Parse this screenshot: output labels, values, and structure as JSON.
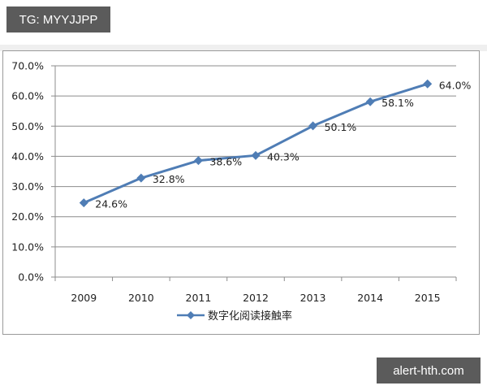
{
  "watermarks": {
    "top_left": "TG: MYYJJPP",
    "bottom_right": "alert-hth.com"
  },
  "colors": {
    "series": "#4f7db5",
    "grid": "#8c8c8c",
    "badge_bg": "#5b5b5b"
  },
  "chart_data": {
    "type": "line",
    "title": "",
    "xlabel": "",
    "ylabel": "",
    "categories": [
      "2009",
      "2010",
      "2011",
      "2012",
      "2013",
      "2014",
      "2015"
    ],
    "series": [
      {
        "name": "数字化阅读接触率",
        "values": [
          24.6,
          32.8,
          38.6,
          40.3,
          50.1,
          58.1,
          64.0
        ],
        "labels": [
          "24.6%",
          "32.8%",
          "38.6%",
          "40.3%",
          "50.1%",
          "58.1%",
          "64.0%"
        ],
        "marker": "diamond"
      }
    ],
    "yticks": [
      "0.0%",
      "10.0%",
      "20.0%",
      "30.0%",
      "40.0%",
      "50.0%",
      "60.0%",
      "70.0%"
    ],
    "ylim": [
      0,
      70
    ],
    "grid": true,
    "legend_position": "bottom"
  },
  "legend": {
    "label": "数字化阅读接触率"
  }
}
